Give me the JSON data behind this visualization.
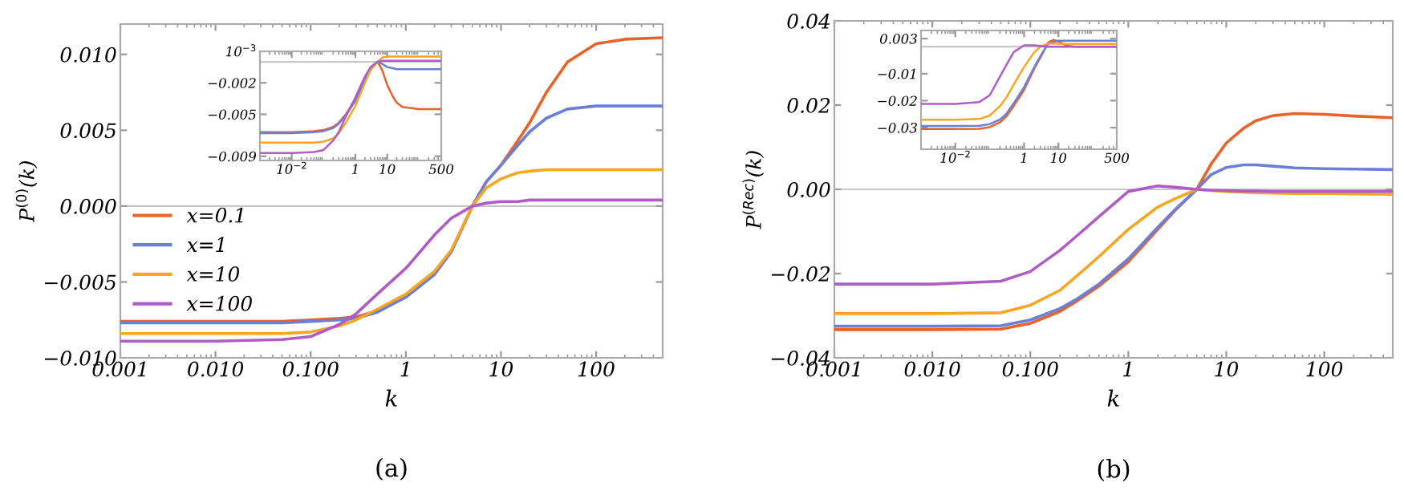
{
  "chart_data": [
    {
      "type": "line",
      "xlabel": "k",
      "ylabel": "P$^{(0)}$(k)",
      "annotations": [
        "(a)"
      ],
      "log": "x",
      "grid": false,
      "legend": "center left",
      "line_style": "solid",
      "marker": "none",
      "x": [
        0.001,
        0.01,
        0.05,
        0.1,
        0.2,
        0.3,
        0.5,
        1,
        2,
        3,
        5,
        7,
        10,
        15,
        20,
        30,
        50,
        100,
        200,
        500
      ],
      "xlim": [
        0.001,
        500
      ],
      "ylim": [
        -0.01,
        0.012
      ],
      "xticks": [
        {
          "value": 0.001,
          "label": "0.001"
        },
        {
          "value": 0.01,
          "label": "0.010"
        },
        {
          "value": 0.1,
          "label": "0.100"
        },
        1,
        10,
        100
      ],
      "yticks": [
        {
          "value": -0.01,
          "label": "−0.010"
        },
        {
          "value": -0.005,
          "label": "−0.005"
        },
        {
          "value": 0,
          "label": "0.000"
        },
        {
          "value": 0.005,
          "label": "0.005"
        },
        {
          "value": 0.01,
          "label": "0.010"
        }
      ],
      "ref_lines": [
        {
          "axis": "y",
          "value": 0,
          "color": "#c8c8c8"
        }
      ],
      "series": [
        {
          "name": "x=0.1",
          "color": "#e8632a",
          "values": [
            -0.0076,
            -0.0076,
            -0.0076,
            -0.0075,
            -0.0074,
            -0.0073,
            -0.0069,
            -0.006,
            -0.0045,
            -0.003,
            0,
            0.0016,
            0.0027,
            0.0043,
            0.0055,
            0.0075,
            0.0095,
            0.0107,
            0.011,
            0.0111
          ]
        },
        {
          "name": "x=1",
          "color": "#6b7fd7",
          "values": [
            -0.0077,
            -0.0077,
            -0.0077,
            -0.0076,
            -0.0075,
            -0.0074,
            -0.007,
            -0.006,
            -0.0045,
            -0.003,
            0,
            0.0016,
            0.0027,
            0.004,
            0.0049,
            0.0058,
            0.0064,
            0.0066,
            0.0066,
            0.0066
          ]
        },
        {
          "name": "x=10",
          "color": "#f5a623",
          "values": [
            -0.0084,
            -0.0084,
            -0.0084,
            -0.0083,
            -0.0079,
            -0.0075,
            -0.0068,
            -0.0058,
            -0.0043,
            -0.0029,
            0,
            0.0012,
            0.0018,
            0.0022,
            0.0023,
            0.0024,
            0.0024,
            0.0024,
            0.0024,
            0.0024
          ]
        },
        {
          "name": "x=100",
          "color": "#b05cc6",
          "values": [
            -0.0089,
            -0.0089,
            -0.0088,
            -0.0086,
            -0.0078,
            -0.0071,
            -0.0058,
            -0.0041,
            -0.0019,
            -0.0008,
            0,
            0.0002,
            0.0003,
            0.0003,
            0.0004,
            0.0004,
            0.0004,
            0.0004,
            0.0004,
            0.0004
          ]
        }
      ]
    },
    {
      "type": "line",
      "log": "x",
      "grid": false,
      "line_style": "solid",
      "marker": "none",
      "x": [
        0.001,
        0.01,
        0.05,
        0.1,
        0.2,
        0.3,
        0.5,
        1,
        2,
        3,
        5,
        7,
        10,
        15,
        20,
        30,
        50,
        100,
        200,
        500
      ],
      "xlim": [
        0.001,
        500
      ],
      "ylim": [
        -0.0094,
        0.001
      ],
      "xticks": [
        {
          "value": 0.01,
          "label": "10$^{−2}$"
        },
        1,
        10,
        500
      ],
      "yticks": [
        {
          "value": -0.009,
          "label": "−0.009"
        },
        {
          "value": -0.005,
          "label": "−0.005"
        },
        {
          "value": -0.002,
          "label": "−0.002"
        },
        {
          "value": 0.001,
          "label": "10$^{−3}$"
        }
      ],
      "ref_lines": [
        {
          "axis": "y",
          "value": 0,
          "color": "#c8c8c8"
        }
      ],
      "series": [
        {
          "color": "#e8632a",
          "values": [
            -0.0067,
            -0.0067,
            -0.0066,
            -0.0065,
            -0.0062,
            -0.0058,
            -0.005,
            -0.0036,
            -0.0016,
            -0.0006,
            0,
            -0.0008,
            -0.0022,
            -0.0033,
            -0.0039,
            -0.0043,
            -0.0044,
            -0.0045,
            -0.0045,
            -0.0045
          ]
        },
        {
          "color": "#6b7fd7",
          "values": [
            -0.0068,
            -0.0068,
            -0.0067,
            -0.0066,
            -0.0063,
            -0.0059,
            -0.0051,
            -0.0037,
            -0.0017,
            -0.0006,
            0,
            -0.0002,
            -0.0005,
            -0.0006,
            -0.0007,
            -0.0007,
            -0.0007,
            -0.0007,
            -0.0007,
            -0.0007
          ]
        },
        {
          "color": "#f5a623",
          "values": [
            -0.0077,
            -0.0077,
            -0.0077,
            -0.0076,
            -0.0073,
            -0.0068,
            -0.0058,
            -0.0042,
            -0.002,
            -0.0008,
            0,
            0.0004,
            0.0005,
            0.0005,
            0.0005,
            0.0005,
            0.0005,
            0.0005,
            0.0005,
            0.0005
          ]
        },
        {
          "color": "#b05cc6",
          "values": [
            -0.0087,
            -0.0087,
            -0.0086,
            -0.0084,
            -0.0075,
            -0.0067,
            -0.0052,
            -0.0034,
            -0.0014,
            -0.0005,
            0,
            0.0001,
            0.0001,
            0.0001,
            0.0001,
            0.0001,
            0.0001,
            0.0001,
            0.0001,
            0.0001
          ]
        }
      ]
    },
    {
      "type": "line",
      "xlabel": "k",
      "ylabel": "P$^{(Rec)}$(k)",
      "annotations": [
        "(b)"
      ],
      "log": "x",
      "grid": false,
      "line_style": "solid",
      "marker": "none",
      "x": [
        0.001,
        0.01,
        0.05,
        0.1,
        0.2,
        0.3,
        0.5,
        1,
        2,
        3,
        5,
        7,
        10,
        15,
        20,
        30,
        50,
        100,
        200,
        500
      ],
      "xlim": [
        0.001,
        500
      ],
      "ylim": [
        -0.04,
        0.04
      ],
      "xticks": [
        {
          "value": 0.001,
          "label": "0.001"
        },
        {
          "value": 0.01,
          "label": "0.010"
        },
        {
          "value": 0.1,
          "label": "0.100"
        },
        1,
        10,
        100
      ],
      "yticks": [
        {
          "value": -0.04,
          "label": "−0.04"
        },
        {
          "value": -0.02,
          "label": "−0.02"
        },
        {
          "value": 0,
          "label": "0.00"
        },
        {
          "value": 0.02,
          "label": "0.02"
        },
        {
          "value": 0.04,
          "label": "0.04"
        }
      ],
      "ref_lines": [
        {
          "axis": "y",
          "value": 0,
          "color": "#c8c8c8"
        }
      ],
      "series": [
        {
          "color": "#e8632a",
          "values": [
            -0.0333,
            -0.0333,
            -0.0332,
            -0.0318,
            -0.029,
            -0.0265,
            -0.023,
            -0.0172,
            -0.0095,
            -0.005,
            0,
            0.006,
            0.011,
            0.0145,
            0.0163,
            0.0175,
            0.018,
            0.0178,
            0.0174,
            0.017
          ]
        },
        {
          "color": "#6b7fd7",
          "values": [
            -0.0325,
            -0.0325,
            -0.0324,
            -0.031,
            -0.0283,
            -0.026,
            -0.0225,
            -0.0165,
            -0.009,
            -0.0048,
            0,
            0.0035,
            0.0052,
            0.0058,
            0.0058,
            0.0055,
            0.0051,
            0.0049,
            0.0048,
            0.0047
          ]
        },
        {
          "color": "#f5a623",
          "values": [
            -0.0295,
            -0.0295,
            -0.0293,
            -0.0275,
            -0.024,
            -0.0205,
            -0.016,
            -0.0095,
            -0.0042,
            -0.0022,
            0,
            -0.0003,
            -0.0005,
            -0.0007,
            -0.0008,
            -0.0009,
            -0.001,
            -0.001,
            -0.0011,
            -0.0012
          ]
        },
        {
          "color": "#b05cc6",
          "values": [
            -0.0225,
            -0.0225,
            -0.0218,
            -0.0195,
            -0.0145,
            -0.011,
            -0.0065,
            -0.0005,
            0.0008,
            0.0005,
            0,
            -0.0002,
            -0.0003,
            -0.0004,
            -0.0004,
            -0.0005,
            -0.0005,
            -0.0005,
            -0.0005,
            -0.0005
          ]
        }
      ]
    },
    {
      "type": "line",
      "log": "x",
      "grid": false,
      "line_style": "solid",
      "marker": "none",
      "x": [
        0.001,
        0.01,
        0.05,
        0.1,
        0.2,
        0.3,
        0.5,
        1,
        2,
        3,
        5,
        7,
        10,
        15,
        20,
        30,
        50,
        100,
        200,
        500
      ],
      "xlim": [
        0.001,
        500
      ],
      "ylim": [
        -0.038,
        0.006
      ],
      "xticks": [
        {
          "value": 0.01,
          "label": "10$^{−2}$"
        },
        1,
        10,
        500
      ],
      "yticks": [
        {
          "value": -0.03,
          "label": "−0.03"
        },
        {
          "value": -0.02,
          "label": "−0.02"
        },
        {
          "value": -0.01,
          "label": "−0.01"
        },
        0.003
      ],
      "ref_lines": [
        {
          "axis": "y",
          "value": 0,
          "color": "#c8c8c8"
        }
      ],
      "series": [
        {
          "color": "#e8632a",
          "values": [
            -0.0305,
            -0.0305,
            -0.0304,
            -0.0298,
            -0.028,
            -0.026,
            -0.022,
            -0.016,
            -0.008,
            -0.004,
            0.0015,
            0.0025,
            0.002,
            0.0008,
            0.0003,
            0,
            0,
            0,
            0,
            0
          ]
        },
        {
          "color": "#6b7fd7",
          "values": [
            -0.0294,
            -0.0294,
            -0.0293,
            -0.0287,
            -0.027,
            -0.025,
            -0.021,
            -0.015,
            -0.0075,
            -0.0035,
            0.001,
            0.0018,
            0.0022,
            0.0022,
            0.0022,
            0.0022,
            0.0022,
            0.0022,
            0.0022,
            0.0022
          ]
        },
        {
          "color": "#f5a623",
          "values": [
            -0.0271,
            -0.0271,
            -0.0268,
            -0.0255,
            -0.022,
            -0.019,
            -0.014,
            -0.0075,
            -0.002,
            0,
            0.0012,
            0.0012,
            0.0011,
            0.001,
            0.001,
            0.001,
            0.001,
            0.001,
            0.001,
            0.001
          ]
        },
        {
          "color": "#b05cc6",
          "values": [
            -0.0212,
            -0.0212,
            -0.0205,
            -0.018,
            -0.011,
            -0.007,
            -0.002,
            0.0005,
            0.0005,
            0.0003,
            0,
            0,
            0,
            0,
            0,
            0,
            0,
            0,
            0,
            0
          ]
        }
      ]
    }
  ]
}
